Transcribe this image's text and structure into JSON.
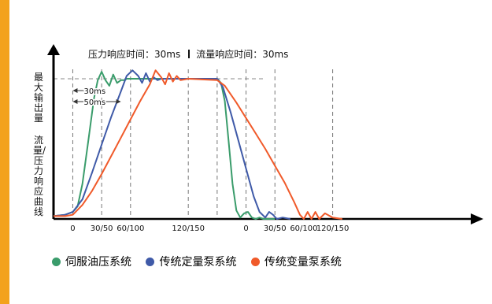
{
  "chart_data": {
    "type": "line",
    "header": {
      "left": "压力响应时间：30ms",
      "right": "流量响应时间：30ms"
    },
    "ylabel_top": "最大输出量",
    "ylabel_bottom": "流量/压力响应曲线",
    "x_ticks_left": [
      "0",
      "30/50",
      "60/100",
      "120/150"
    ],
    "x_ticks_right": [
      "0",
      "30/50",
      "60/100",
      "120/150"
    ],
    "annotations": [
      "30ms",
      "50ms"
    ],
    "xlim": [
      -20,
      420
    ],
    "ylim": [
      0,
      1.1
    ],
    "series": [
      {
        "name": "伺服油压系统",
        "color": "#3a9c6b",
        "x": [
          -20,
          -8,
          0,
          5,
          10,
          16,
          22,
          26,
          30,
          34,
          38,
          42,
          46,
          50,
          54,
          56,
          150,
          154,
          158,
          162,
          166,
          170,
          174,
          178,
          182,
          186,
          190,
          194,
          198,
          210
        ],
        "y": [
          0.02,
          0.03,
          0.05,
          0.09,
          0.25,
          0.55,
          0.86,
          0.99,
          1.05,
          0.99,
          0.95,
          1.03,
          0.97,
          0.99,
          0.99,
          1.0,
          1.0,
          0.97,
          0.84,
          0.55,
          0.25,
          0.06,
          0.01,
          0.04,
          0.05,
          0.01,
          0.0,
          0.01,
          0.0,
          0.0
        ]
      },
      {
        "name": "传统定量泵系统",
        "color": "#3f5aa8",
        "x": [
          -20,
          -8,
          0,
          10,
          20,
          30,
          40,
          50,
          56,
          62,
          68,
          72,
          76,
          80,
          84,
          88,
          92,
          150,
          156,
          164,
          172,
          180,
          188,
          194,
          200,
          204,
          208,
          212,
          218,
          226
        ],
        "y": [
          0.02,
          0.03,
          0.05,
          0.14,
          0.33,
          0.53,
          0.73,
          0.91,
          1.02,
          1.06,
          1.02,
          0.97,
          1.04,
          0.98,
          1.01,
          0.99,
          1.0,
          1.0,
          0.94,
          0.76,
          0.56,
          0.36,
          0.16,
          0.05,
          0.01,
          0.05,
          0.03,
          0.0,
          0.01,
          0.0
        ]
      },
      {
        "name": "传统变量泵系统",
        "color": "#f05a2a",
        "x": [
          -20,
          -8,
          0,
          10,
          20,
          30,
          40,
          50,
          60,
          70,
          80,
          86,
          92,
          96,
          100,
          104,
          108,
          112,
          120,
          150,
          158,
          170,
          180,
          190,
          200,
          210,
          220,
          230,
          236,
          240,
          244,
          248,
          252,
          256,
          262,
          270,
          280
        ],
        "y": [
          0.02,
          0.02,
          0.03,
          0.1,
          0.2,
          0.32,
          0.45,
          0.58,
          0.71,
          0.84,
          0.96,
          1.06,
          1.01,
          0.96,
          1.04,
          0.98,
          1.02,
          0.99,
          1.0,
          0.99,
          0.95,
          0.83,
          0.72,
          0.61,
          0.5,
          0.38,
          0.26,
          0.12,
          0.03,
          0.0,
          0.05,
          0.0,
          0.05,
          0.0,
          0.04,
          0.01,
          0.0
        ]
      }
    ]
  }
}
